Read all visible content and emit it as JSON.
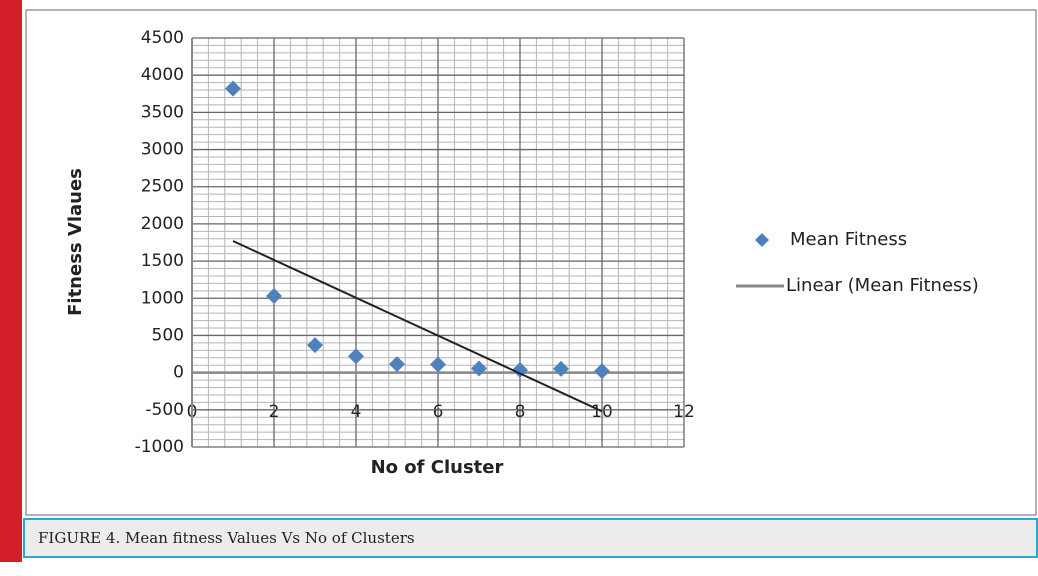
{
  "caption": "FIGURE 4. Mean fitness Values Vs No of Clusters",
  "chart_data": {
    "type": "scatter",
    "x_label": "No of Cluster",
    "y_label": "Fitness Vlaues",
    "xlim": [
      0,
      12
    ],
    "xticks": [
      0,
      2,
      4,
      6,
      8,
      10,
      12
    ],
    "ylim": [
      -1000,
      4500
    ],
    "yticks": [
      -1000,
      -500,
      0,
      500,
      1000,
      1500,
      2000,
      2500,
      3000,
      3500,
      4000,
      4500
    ],
    "grid": true,
    "minor_grid": true,
    "legend": "right",
    "series": [
      {
        "name": "Mean Fitness",
        "color": "#4f81bd",
        "x": [
          1,
          2,
          3,
          4,
          5,
          6,
          7,
          8,
          9,
          10
        ],
        "values": [
          3820,
          1030,
          370,
          220,
          115,
          110,
          55,
          35,
          50,
          20
        ]
      },
      {
        "name": "Linear (Mean Fitness)",
        "color": "#222222",
        "line": true,
        "x": [
          1,
          10
        ],
        "values": [
          1770,
          -520
        ]
      }
    ]
  }
}
